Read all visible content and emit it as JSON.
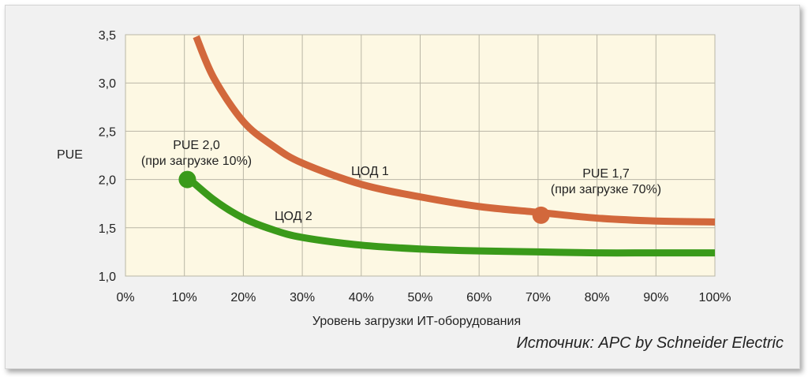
{
  "chart_data": {
    "type": "line",
    "xlabel": "Уровень загрузки ИТ-оборудования",
    "ylabel": "PUE",
    "xlim": [
      0,
      100
    ],
    "ylim": [
      1.0,
      3.5
    ],
    "x_tick_labels": [
      "0%",
      "10%",
      "20%",
      "30%",
      "40%",
      "50%",
      "60%",
      "70%",
      "80%",
      "90%",
      "100%"
    ],
    "y_tick_labels": [
      "1,0",
      "1,5",
      "2,0",
      "2,5",
      "3,0",
      "3,5"
    ],
    "grid": true,
    "series": [
      {
        "name": "ЦОД 1",
        "color": "#d2683c",
        "x": [
          12,
          15,
          20,
          25,
          30,
          40,
          50,
          60,
          70,
          80,
          90,
          100
        ],
        "y": [
          3.48,
          3.05,
          2.6,
          2.35,
          2.17,
          1.95,
          1.82,
          1.72,
          1.66,
          1.6,
          1.57,
          1.56
        ]
      },
      {
        "name": "ЦОД 2",
        "color": "#3a9a1a",
        "x": [
          10,
          15,
          20,
          25,
          30,
          40,
          50,
          60,
          70,
          80,
          90,
          100
        ],
        "y": [
          2.05,
          1.79,
          1.6,
          1.48,
          1.4,
          1.32,
          1.28,
          1.26,
          1.25,
          1.24,
          1.24,
          1.24
        ]
      }
    ],
    "markers": [
      {
        "series": "ЦОД 2",
        "x": 10.5,
        "y": 2.0,
        "color": "#3a9a1a"
      },
      {
        "series": "ЦОД 1",
        "x": 70.5,
        "y": 1.63,
        "color": "#d2683c"
      }
    ],
    "annotations": [
      {
        "line1": "PUE 2,0",
        "line2": "(при загрузке 10%)"
      },
      {
        "line1": "PUE 1,7",
        "line2": "(при загрузке 70%)"
      }
    ],
    "source": "Источник: APC by Schneider Electric"
  }
}
